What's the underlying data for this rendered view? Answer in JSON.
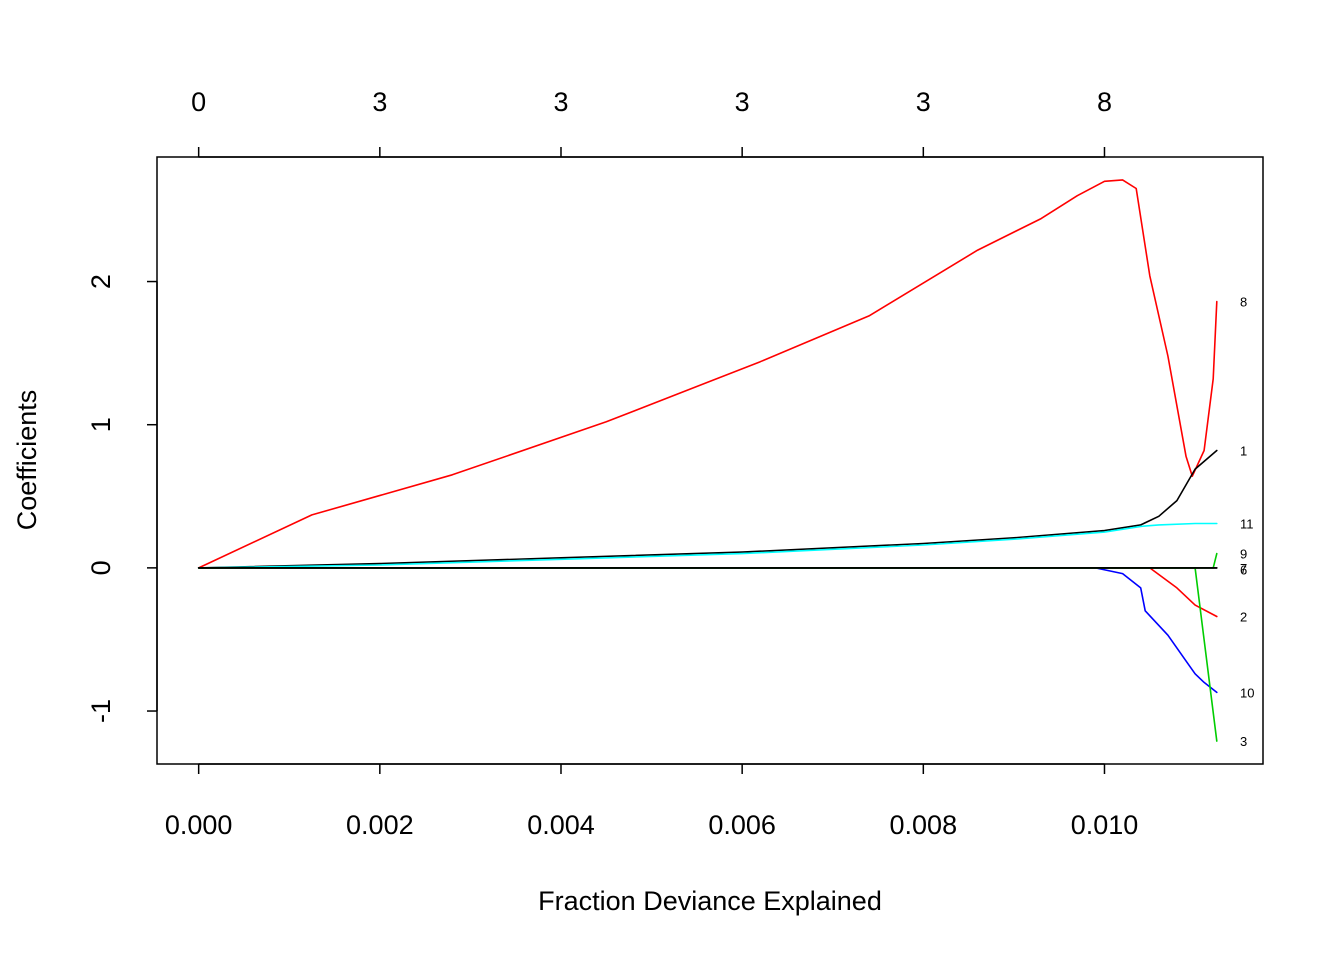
{
  "chart_data": {
    "type": "line",
    "xlabel": "Fraction Deviance Explained",
    "ylabel": "Coefficients",
    "xlim": [
      -0.00046,
      0.01175
    ],
    "ylim": [
      -1.37,
      2.87
    ],
    "x_ticks": [
      "0.000",
      "0.002",
      "0.004",
      "0.006",
      "0.008",
      "0.010"
    ],
    "x_tick_values": [
      0,
      0.002,
      0.004,
      0.006,
      0.008,
      0.01
    ],
    "y_ticks": [
      "-1",
      "0",
      "1",
      "2"
    ],
    "y_tick_values": [
      -1,
      0,
      1,
      2
    ],
    "top_ticks": [
      "0",
      "3",
      "3",
      "3",
      "3",
      "8"
    ],
    "grid": false,
    "series": [
      {
        "name": "8",
        "color": "#ff0000",
        "x": [
          0,
          0.00125,
          0.0028,
          0.0045,
          0.0062,
          0.0074,
          0.0086,
          0.0093,
          0.0097,
          0.01,
          0.0102,
          0.01035,
          0.0105,
          0.0107,
          0.0109,
          0.01097,
          0.0111,
          0.0112,
          0.01124
        ],
        "y": [
          0,
          0.37,
          0.65,
          1.02,
          1.44,
          1.76,
          2.22,
          2.44,
          2.6,
          2.7,
          2.71,
          2.65,
          2.04,
          1.48,
          0.78,
          0.64,
          0.82,
          1.32,
          1.86
        ]
      },
      {
        "name": "1",
        "color": "#000000",
        "x": [
          0,
          0.002,
          0.004,
          0.006,
          0.008,
          0.009,
          0.01,
          0.0104,
          0.0106,
          0.0108,
          0.011,
          0.01124
        ],
        "y": [
          0,
          0.03,
          0.07,
          0.11,
          0.17,
          0.21,
          0.26,
          0.3,
          0.36,
          0.47,
          0.69,
          0.82
        ]
      },
      {
        "name": "11",
        "color": "#00ffff",
        "x": [
          0,
          0.002,
          0.004,
          0.006,
          0.008,
          0.009,
          0.01,
          0.0104,
          0.0106,
          0.011,
          0.01124
        ],
        "y": [
          0,
          0.02,
          0.06,
          0.1,
          0.16,
          0.2,
          0.25,
          0.29,
          0.3,
          0.31,
          0.31
        ]
      },
      {
        "name": "2",
        "color": "#ff0000",
        "x": [
          0,
          0.0105,
          0.0108,
          0.011,
          0.01124
        ],
        "y": [
          0,
          0,
          -0.14,
          -0.26,
          -0.34
        ]
      },
      {
        "name": "10",
        "color": "#0000ff",
        "x": [
          0,
          0.0099,
          0.0102,
          0.0104,
          0.01045,
          0.0107,
          0.0109,
          0.011,
          0.0111,
          0.01124
        ],
        "y": [
          0,
          0,
          -0.04,
          -0.14,
          -0.3,
          -0.47,
          -0.65,
          -0.74,
          -0.8,
          -0.87
        ]
      },
      {
        "name": "3",
        "color": "#00cd00",
        "x": [
          0,
          0.011,
          0.01124
        ],
        "y": [
          0,
          0,
          -1.21
        ]
      },
      {
        "name": "9",
        "color": "#00cd00",
        "x": [
          0,
          0.0112,
          0.01124
        ],
        "y": [
          0,
          0,
          0.1
        ]
      },
      {
        "name": "7",
        "color": "#000000",
        "x": [
          0,
          0.01124
        ],
        "y": [
          0,
          0
        ]
      },
      {
        "name": "6",
        "color": "#000000",
        "x": [
          0,
          0.01124
        ],
        "y": [
          0,
          0
        ]
      }
    ],
    "end_labels": [
      {
        "text": "8",
        "y": 1.86
      },
      {
        "text": "1",
        "y": 0.82
      },
      {
        "text": "11",
        "y": 0.31
      },
      {
        "text": "9",
        "y": 0.1
      },
      {
        "text": "7",
        "y": 0.0
      },
      {
        "text": "6",
        "y": -0.01
      },
      {
        "text": "2",
        "y": -0.34
      },
      {
        "text": "10",
        "y": -0.87
      },
      {
        "text": "3",
        "y": -1.21
      }
    ]
  }
}
